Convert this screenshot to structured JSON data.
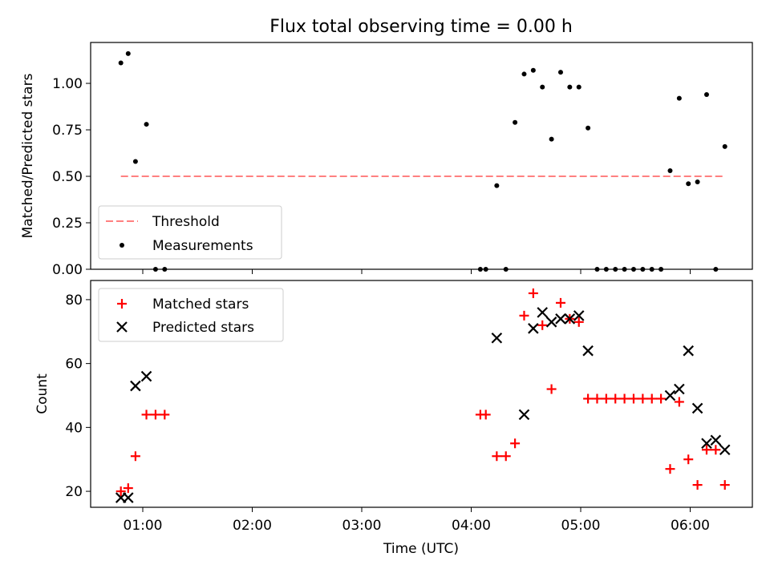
{
  "title": "Flux total observing time = 0.00 h",
  "chart_data": [
    {
      "type": "scatter",
      "ylabel": "Matched/Predicted stars",
      "ylim": [
        0,
        1.22
      ],
      "y_ticks": [
        0.0,
        0.25,
        0.5,
        0.75,
        1.0
      ],
      "y_tick_labels": [
        "0.00",
        "0.25",
        "0.50",
        "0.75",
        "1.00"
      ],
      "threshold": {
        "name": "Threshold",
        "value": 0.5,
        "x_start": "00:48",
        "x_end": "06:18",
        "color": "#ff8080"
      },
      "series": [
        {
          "name": "Measurements",
          "color": "#000000",
          "x": [
            "00:48",
            "00:52",
            "00:56",
            "01:02",
            "01:07",
            "01:12",
            "04:05",
            "04:08",
            "04:14",
            "04:19",
            "04:24",
            "04:29",
            "04:34",
            "04:39",
            "04:44",
            "04:49",
            "04:54",
            "04:59",
            "05:04",
            "05:09",
            "05:14",
            "05:19",
            "05:24",
            "05:29",
            "05:34",
            "05:39",
            "05:44",
            "05:49",
            "05:54",
            "05:59",
            "06:04",
            "06:09",
            "06:14",
            "06:19"
          ],
          "y": [
            1.11,
            1.16,
            0.58,
            0.78,
            0.0,
            0.0,
            0.0,
            0.0,
            0.45,
            0.0,
            0.79,
            1.05,
            1.07,
            0.98,
            0.7,
            1.06,
            0.98,
            0.98,
            0.76,
            0.0,
            0.0,
            0.0,
            0.0,
            0.0,
            0.0,
            0.0,
            0.0,
            0.53,
            0.92,
            0.46,
            0.47,
            0.94,
            0.0,
            0.66
          ]
        }
      ],
      "legend": {
        "placement": "lower-left",
        "entries": [
          "Threshold",
          "Measurements"
        ]
      }
    },
    {
      "type": "scatter",
      "xlabel": "Time (UTC)",
      "ylabel": "Count",
      "ylim": [
        15,
        86
      ],
      "y_ticks": [
        20,
        40,
        60,
        80
      ],
      "x_ticks": [
        "01:00",
        "02:00",
        "03:00",
        "04:00",
        "05:00",
        "06:00"
      ],
      "series": [
        {
          "name": "Matched stars",
          "color": "#ff0000",
          "marker": "plus",
          "x": [
            "00:48",
            "00:52",
            "00:56",
            "01:02",
            "01:07",
            "01:12",
            "04:05",
            "04:08",
            "04:14",
            "04:19",
            "04:24",
            "04:29",
            "04:34",
            "04:39",
            "04:44",
            "04:49",
            "04:54",
            "04:59",
            "05:04",
            "05:09",
            "05:14",
            "05:19",
            "05:24",
            "05:29",
            "05:34",
            "05:39",
            "05:44",
            "05:49",
            "05:54",
            "05:59",
            "06:04",
            "06:09",
            "06:14",
            "06:19"
          ],
          "y": [
            20,
            21,
            31,
            44,
            44,
            44,
            44,
            44,
            31,
            31,
            35,
            75,
            82,
            72,
            52,
            79,
            74,
            73,
            49,
            49,
            49,
            49,
            49,
            49,
            49,
            49,
            49,
            27,
            48,
            30,
            22,
            33,
            33,
            22
          ]
        },
        {
          "name": "Predicted stars",
          "color": "#000000",
          "marker": "x",
          "x": [
            "00:48",
            "00:52",
            "00:56",
            "01:02",
            "04:14",
            "04:29",
            "04:34",
            "04:39",
            "04:44",
            "04:49",
            "04:54",
            "04:59",
            "05:04",
            "05:49",
            "05:54",
            "05:59",
            "06:04",
            "06:09",
            "06:14",
            "06:19"
          ],
          "y": [
            18,
            18,
            53,
            56,
            68,
            44,
            71,
            76,
            73,
            74,
            74,
            75,
            64,
            50,
            52,
            64,
            46,
            35,
            36,
            33
          ]
        }
      ],
      "legend": {
        "placement": "upper-left",
        "entries": [
          "Matched stars",
          "Predicted stars"
        ]
      }
    }
  ]
}
